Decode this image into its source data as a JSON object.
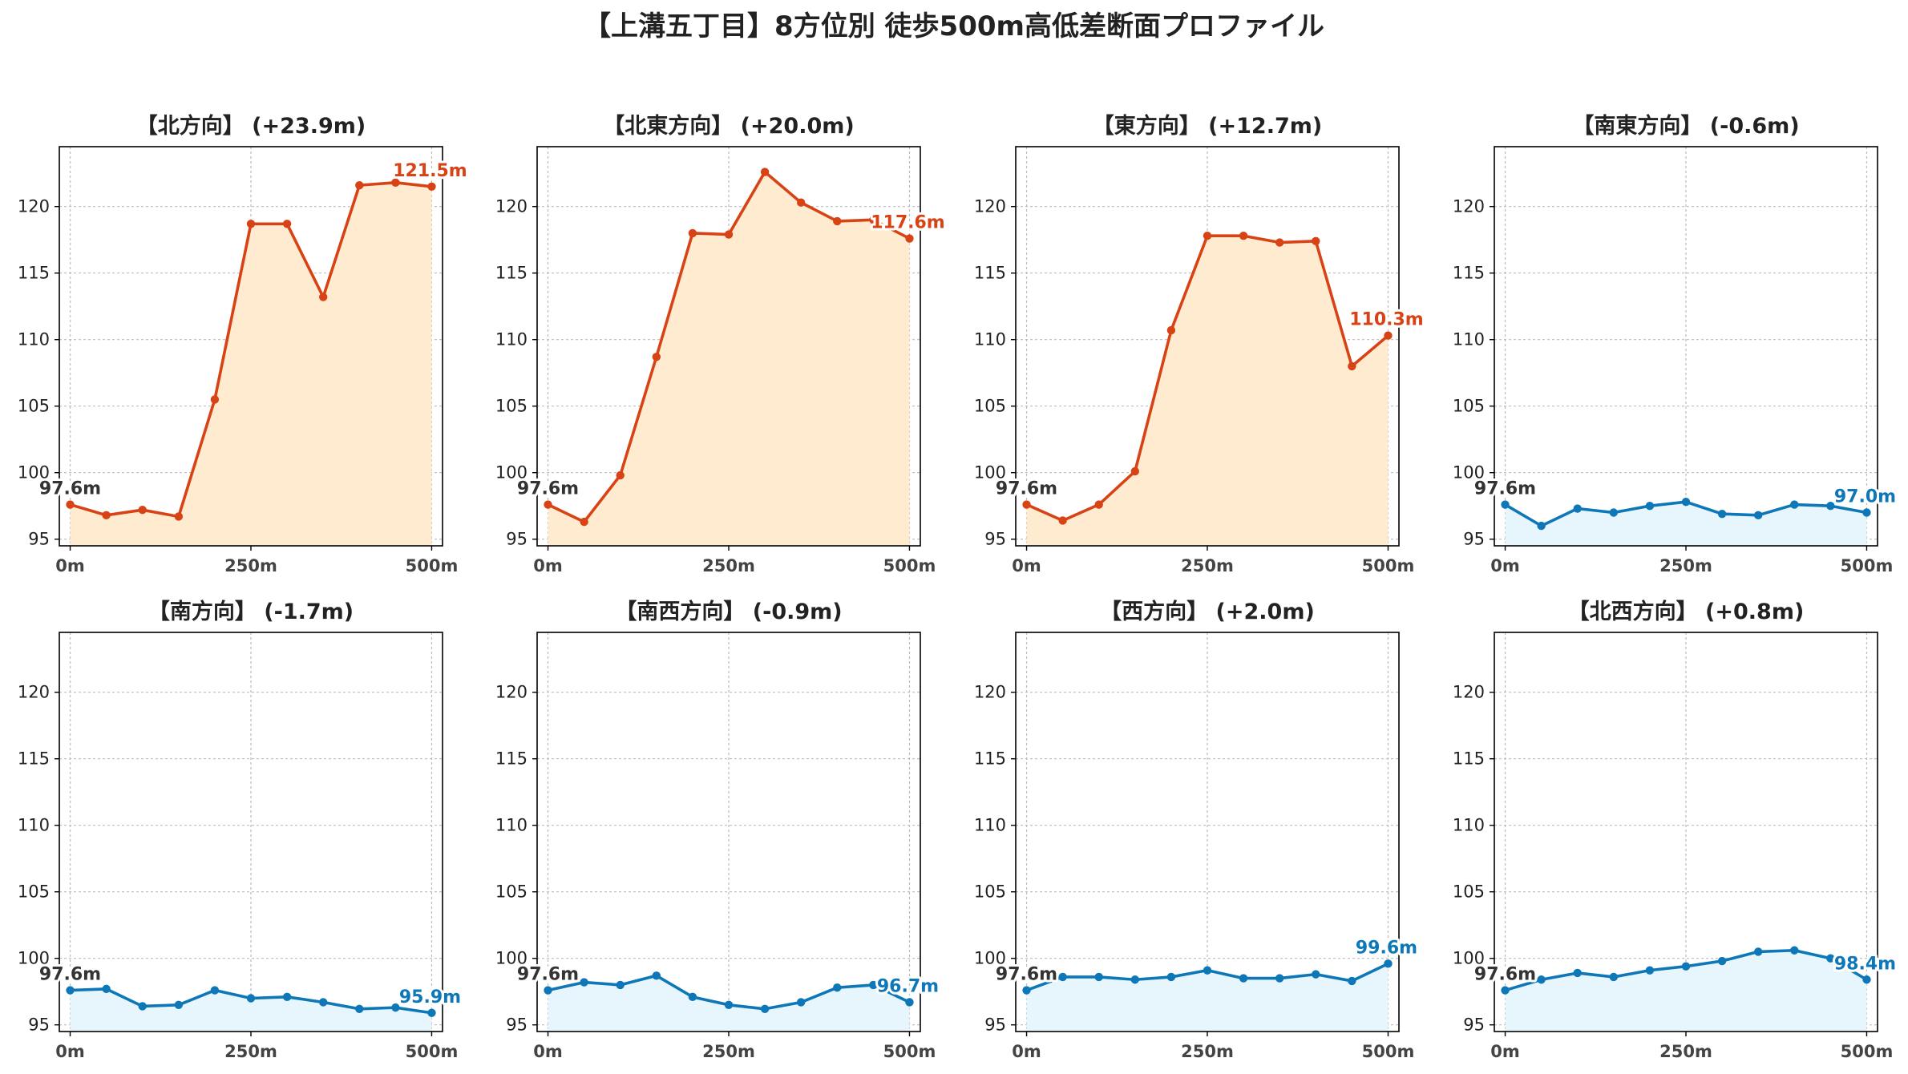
{
  "title": "【上溝五丁目】8方位別 徒歩500m高低差断面プロファイル",
  "colors": {
    "up_line": "#d84315",
    "up_fill": "#ffecd0",
    "down_line": "#0d77b8",
    "down_fill": "#e7f5fc",
    "grid": "#bbbbbb",
    "axis": "#000000"
  },
  "chart_data": [
    {
      "type": "area",
      "title": "【北方向】 (+23.9m)",
      "x": [
        0,
        50,
        100,
        150,
        200,
        250,
        300,
        350,
        400,
        450,
        500
      ],
      "values": [
        97.6,
        96.8,
        97.2,
        96.7,
        105.5,
        118.7,
        118.7,
        113.2,
        121.6,
        121.8,
        121.5
      ],
      "trend": "up",
      "start_label": "97.6m",
      "end_label": "121.5m",
      "xticks": [
        "0m",
        "250m",
        "500m"
      ],
      "yticks": [
        95,
        100,
        105,
        110,
        115,
        120
      ],
      "xlim": [
        -15,
        515
      ],
      "ylim": [
        94.5,
        124.5
      ],
      "grid": true
    },
    {
      "type": "area",
      "title": "【北東方向】 (+20.0m)",
      "x": [
        0,
        50,
        100,
        150,
        200,
        250,
        300,
        350,
        400,
        450,
        500
      ],
      "values": [
        97.6,
        96.3,
        99.8,
        108.7,
        118.0,
        117.9,
        122.6,
        120.3,
        118.9,
        119.0,
        117.6
      ],
      "trend": "up",
      "start_label": "97.6m",
      "end_label": "117.6m",
      "xticks": [
        "0m",
        "250m",
        "500m"
      ],
      "yticks": [
        95,
        100,
        105,
        110,
        115,
        120
      ],
      "xlim": [
        -15,
        515
      ],
      "ylim": [
        94.5,
        124.5
      ],
      "grid": true
    },
    {
      "type": "area",
      "title": "【東方向】 (+12.7m)",
      "x": [
        0,
        50,
        100,
        150,
        200,
        250,
        300,
        350,
        400,
        450,
        500
      ],
      "values": [
        97.6,
        96.4,
        97.6,
        100.1,
        110.7,
        117.8,
        117.8,
        117.3,
        117.4,
        108.0,
        110.3
      ],
      "trend": "up",
      "start_label": "97.6m",
      "end_label": "110.3m",
      "xticks": [
        "0m",
        "250m",
        "500m"
      ],
      "yticks": [
        95,
        100,
        105,
        110,
        115,
        120
      ],
      "xlim": [
        -15,
        515
      ],
      "ylim": [
        94.5,
        124.5
      ],
      "grid": true
    },
    {
      "type": "area",
      "title": "【南東方向】 (-0.6m)",
      "x": [
        0,
        50,
        100,
        150,
        200,
        250,
        300,
        350,
        400,
        450,
        500
      ],
      "values": [
        97.6,
        96.0,
        97.3,
        97.0,
        97.5,
        97.8,
        96.9,
        96.8,
        97.6,
        97.5,
        97.0
      ],
      "trend": "down",
      "start_label": "97.6m",
      "end_label": "97.0m",
      "xticks": [
        "0m",
        "250m",
        "500m"
      ],
      "yticks": [
        95,
        100,
        105,
        110,
        115,
        120
      ],
      "xlim": [
        -15,
        515
      ],
      "ylim": [
        94.5,
        124.5
      ],
      "grid": true
    },
    {
      "type": "area",
      "title": "【南方向】 (-1.7m)",
      "x": [
        0,
        50,
        100,
        150,
        200,
        250,
        300,
        350,
        400,
        450,
        500
      ],
      "values": [
        97.6,
        97.7,
        96.4,
        96.5,
        97.6,
        97.0,
        97.1,
        96.7,
        96.2,
        96.3,
        95.9
      ],
      "trend": "down",
      "start_label": "97.6m",
      "end_label": "95.9m",
      "xticks": [
        "0m",
        "250m",
        "500m"
      ],
      "yticks": [
        95,
        100,
        105,
        110,
        115,
        120
      ],
      "xlim": [
        -15,
        515
      ],
      "ylim": [
        94.5,
        124.5
      ],
      "grid": true
    },
    {
      "type": "area",
      "title": "【南西方向】 (-0.9m)",
      "x": [
        0,
        50,
        100,
        150,
        200,
        250,
        300,
        350,
        400,
        450,
        500
      ],
      "values": [
        97.6,
        98.2,
        98.0,
        98.7,
        97.1,
        96.5,
        96.2,
        96.7,
        97.8,
        98.0,
        96.7
      ],
      "trend": "down",
      "start_label": "97.6m",
      "end_label": "96.7m",
      "xticks": [
        "0m",
        "250m",
        "500m"
      ],
      "yticks": [
        95,
        100,
        105,
        110,
        115,
        120
      ],
      "xlim": [
        -15,
        515
      ],
      "ylim": [
        94.5,
        124.5
      ],
      "grid": true
    },
    {
      "type": "area",
      "title": "【西方向】 (+2.0m)",
      "x": [
        0,
        50,
        100,
        150,
        200,
        250,
        300,
        350,
        400,
        450,
        500
      ],
      "values": [
        97.6,
        98.6,
        98.6,
        98.4,
        98.6,
        99.1,
        98.5,
        98.5,
        98.8,
        98.3,
        99.6
      ],
      "trend": "down",
      "start_label": "97.6m",
      "end_label": "99.6m",
      "xticks": [
        "0m",
        "250m",
        "500m"
      ],
      "yticks": [
        95,
        100,
        105,
        110,
        115,
        120
      ],
      "xlim": [
        -15,
        515
      ],
      "ylim": [
        94.5,
        124.5
      ],
      "grid": true
    },
    {
      "type": "area",
      "title": "【北西方向】 (+0.8m)",
      "x": [
        0,
        50,
        100,
        150,
        200,
        250,
        300,
        350,
        400,
        450,
        500
      ],
      "values": [
        97.6,
        98.4,
        98.9,
        98.6,
        99.1,
        99.4,
        99.8,
        100.5,
        100.6,
        100.0,
        98.4
      ],
      "trend": "down",
      "start_label": "97.6m",
      "end_label": "98.4m",
      "xticks": [
        "0m",
        "250m",
        "500m"
      ],
      "yticks": [
        95,
        100,
        105,
        110,
        115,
        120
      ],
      "xlim": [
        -15,
        515
      ],
      "ylim": [
        94.5,
        124.5
      ],
      "grid": true
    }
  ]
}
